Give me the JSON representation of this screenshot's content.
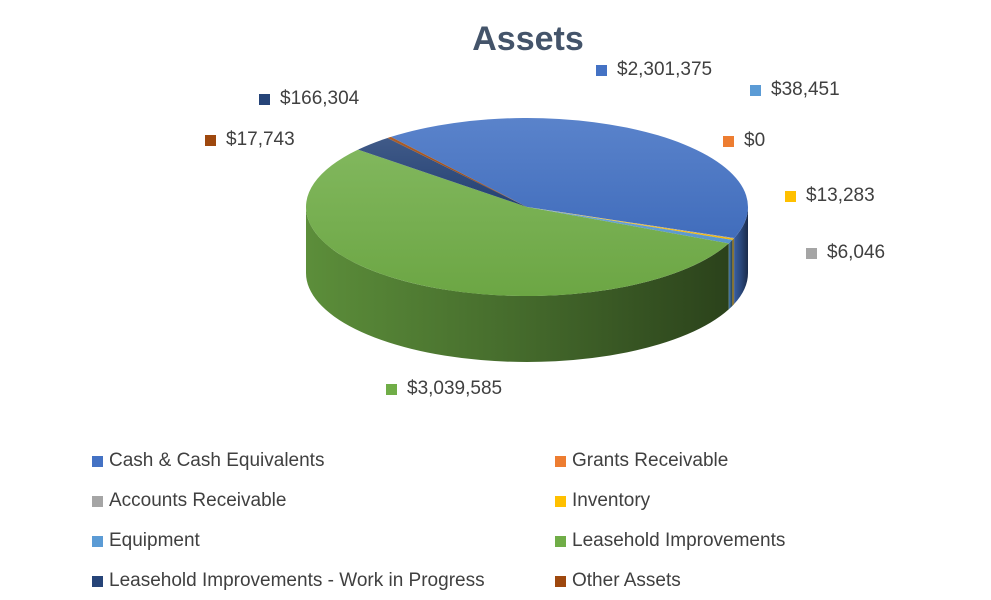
{
  "chart_data": {
    "type": "pie",
    "title": "Assets",
    "three_d": true,
    "legend_position": "bottom",
    "slices": [
      {
        "name": "Cash & Cash Equivalents",
        "value": 2301375,
        "label": "$2,301,375",
        "color": "#4472c4"
      },
      {
        "name": "Grants Receivable",
        "value": 0,
        "label": "$0",
        "color": "#ed7d31"
      },
      {
        "name": "Accounts Receivable",
        "value": 6046,
        "label": "$6,046",
        "color": "#a5a5a5"
      },
      {
        "name": "Inventory",
        "value": 13283,
        "label": "$13,283",
        "color": "#ffc000"
      },
      {
        "name": "Equipment",
        "value": 38451,
        "label": "$38,451",
        "color": "#5b9bd5"
      },
      {
        "name": "Leasehold Improvements",
        "value": 3039585,
        "label": "$3,039,585",
        "color": "#70ad47"
      },
      {
        "name": "Leasehold Improvements - Work in Progress",
        "value": 166304,
        "label": "$166,304",
        "color": "#264478"
      },
      {
        "name": "Other Assets",
        "value": 17743,
        "label": "$17,743",
        "color": "#9e480e"
      }
    ]
  }
}
